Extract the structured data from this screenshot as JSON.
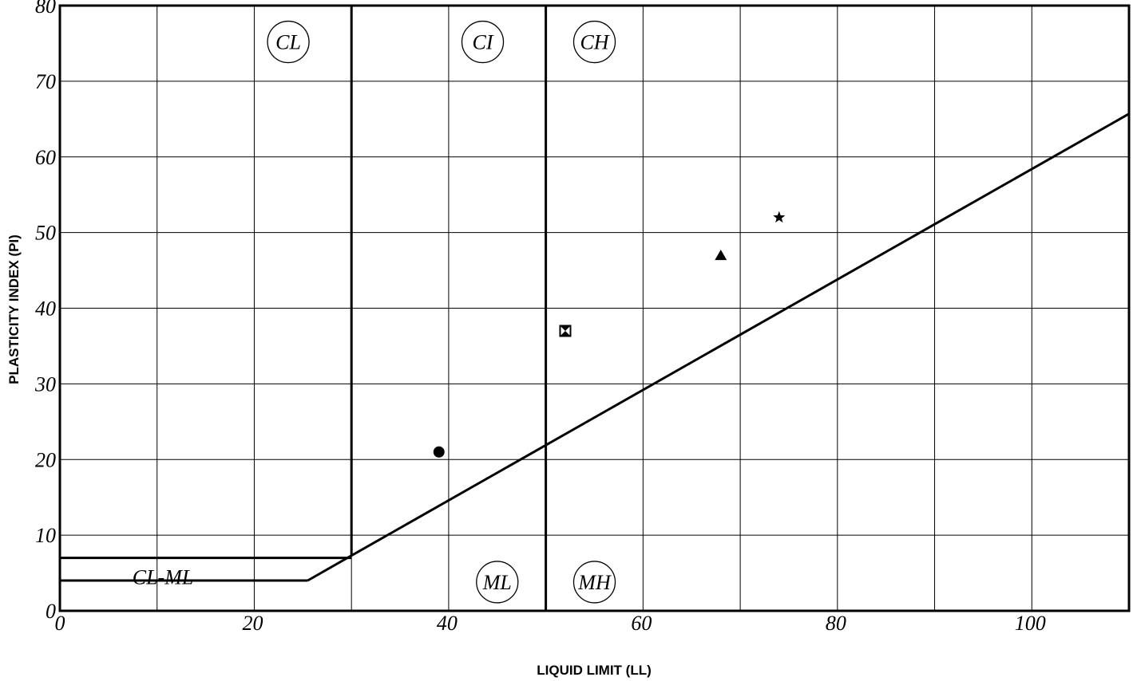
{
  "chart_data": {
    "type": "scatter",
    "title": "",
    "xlabel": "LIQUID LIMIT (LL)",
    "ylabel": "PLASTICITY INDEX (PI)",
    "xlim": [
      0,
      110
    ],
    "ylim": [
      0,
      80
    ],
    "x_ticks": [
      0,
      20,
      40,
      60,
      80,
      100
    ],
    "y_ticks": [
      0,
      10,
      20,
      30,
      40,
      50,
      60,
      70,
      80
    ],
    "x_gridlines": [
      10,
      20,
      30,
      40,
      50,
      60,
      70,
      80,
      90,
      100
    ],
    "y_gridlines": [
      10,
      20,
      30,
      40,
      50,
      60,
      70
    ],
    "grid": true,
    "boundaries": {
      "a_line": [
        [
          25.5,
          4
        ],
        [
          30,
          7.3
        ],
        [
          110,
          65.7
        ]
      ],
      "vertical_ll_30": [
        [
          30,
          7.3
        ],
        [
          30,
          80
        ]
      ],
      "vertical_ll_50": [
        [
          50,
          0
        ],
        [
          50,
          80
        ]
      ],
      "cl_ml_top": [
        [
          0,
          7
        ],
        [
          30,
          7
        ]
      ],
      "cl_ml_bottom": [
        [
          0,
          4
        ],
        [
          25.5,
          4
        ]
      ]
    },
    "zone_labels": [
      {
        "text": "CL",
        "x": 23.5,
        "y": 75.2
      },
      {
        "text": "CI",
        "x": 43.5,
        "y": 75.2
      },
      {
        "text": "CH",
        "x": 55,
        "y": 75.2
      },
      {
        "text": "ML",
        "x": 45,
        "y": 3.8
      },
      {
        "text": "MH",
        "x": 55,
        "y": 3.8
      },
      {
        "text": "CL-ML",
        "x": 10.6,
        "y": 4.5
      }
    ],
    "points": [
      {
        "x": 39,
        "y": 21,
        "marker": "circle"
      },
      {
        "x": 52,
        "y": 37,
        "marker": "hourglass-square"
      },
      {
        "x": 68,
        "y": 47,
        "marker": "triangle"
      },
      {
        "x": 74,
        "y": 52,
        "marker": "star"
      }
    ]
  }
}
